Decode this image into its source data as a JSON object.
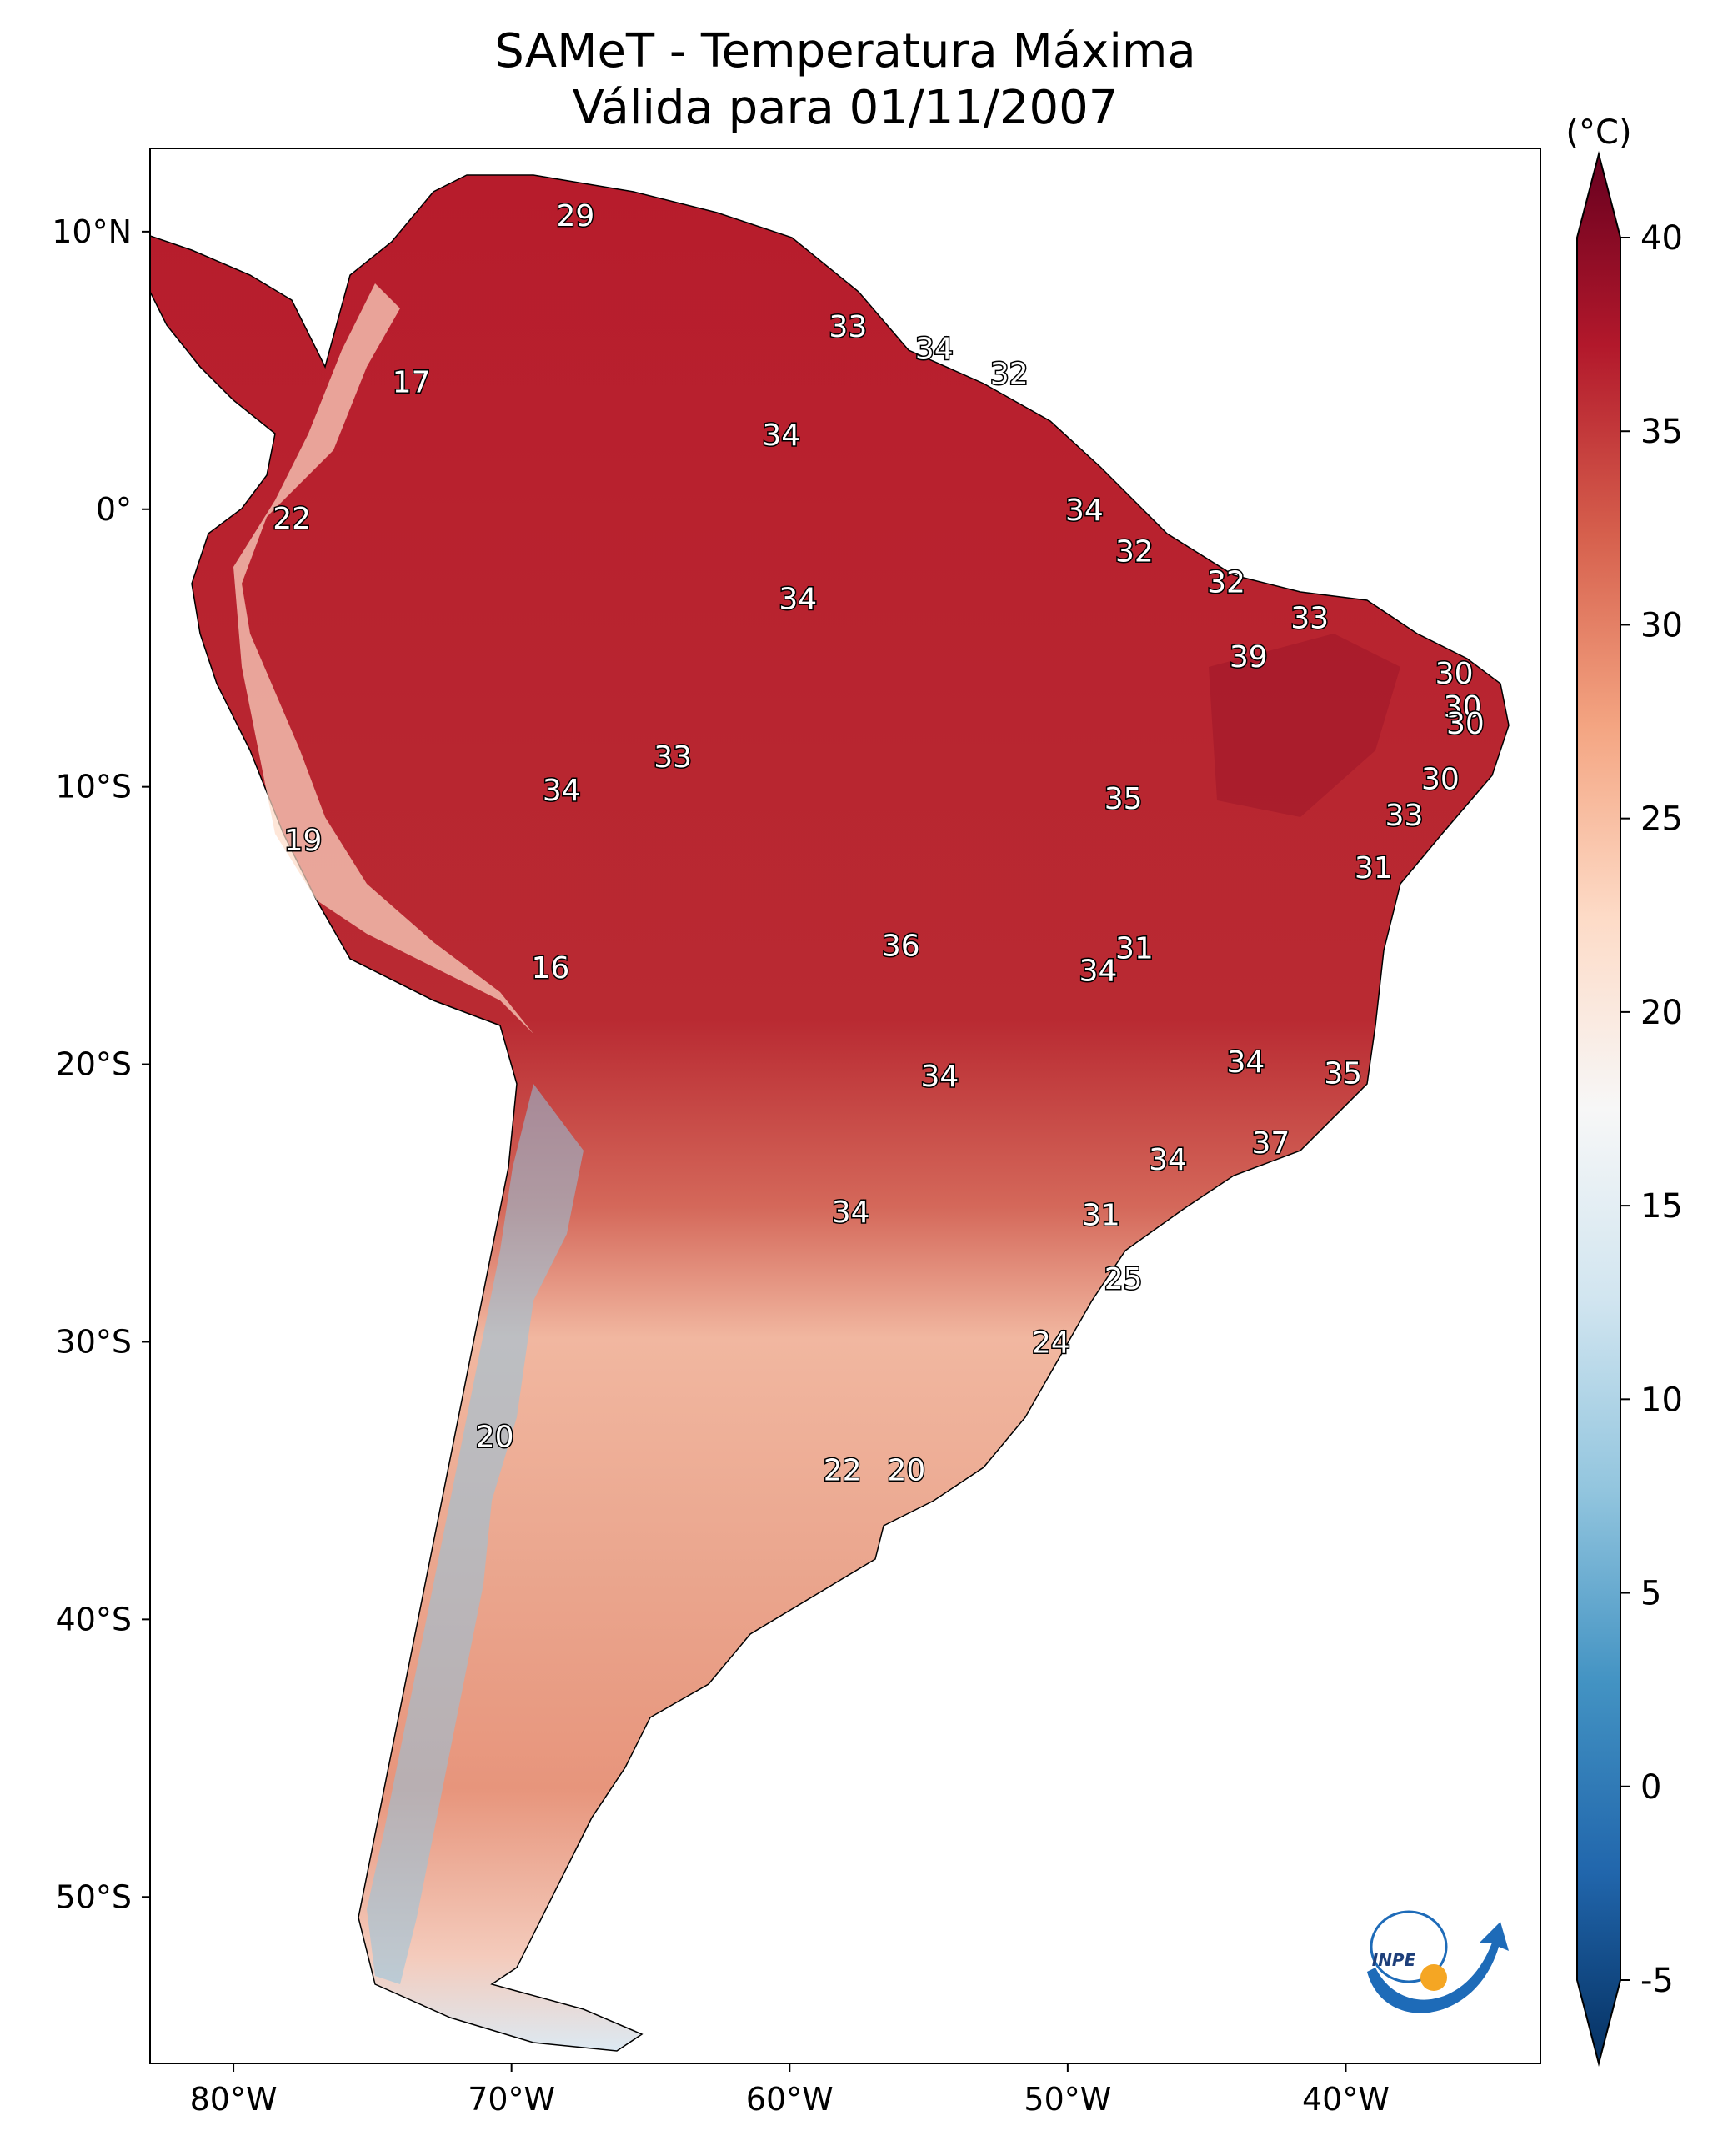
{
  "title": {
    "line1": "SAMeT - Temperatura Máxima",
    "line2": "Válida para 01/11/2007"
  },
  "axes": {
    "lon_ticks": [
      {
        "value": -80,
        "label": "80°W"
      },
      {
        "value": -70,
        "label": "70°W"
      },
      {
        "value": -60,
        "label": "60°W"
      },
      {
        "value": -50,
        "label": "50°W"
      },
      {
        "value": -40,
        "label": "40°W"
      }
    ],
    "lat_ticks": [
      {
        "value": 10,
        "label": "10°N"
      },
      {
        "value": 0,
        "label": "0°"
      },
      {
        "value": -10,
        "label": "10°S"
      },
      {
        "value": -20,
        "label": "20°S"
      },
      {
        "value": -30,
        "label": "30°S"
      },
      {
        "value": -40,
        "label": "40°S"
      },
      {
        "value": -50,
        "label": "50°S"
      }
    ],
    "lon_range": [
      -83,
      -33
    ],
    "lat_range": [
      -56,
      13
    ]
  },
  "colorbar": {
    "unit": "(°C)",
    "range": [
      -5,
      40
    ],
    "ticks": [
      {
        "value": 40,
        "label": "40"
      },
      {
        "value": 35,
        "label": "35"
      },
      {
        "value": 30,
        "label": "30"
      },
      {
        "value": 25,
        "label": "25"
      },
      {
        "value": 20,
        "label": "20"
      },
      {
        "value": 15,
        "label": "15"
      },
      {
        "value": 10,
        "label": "10"
      },
      {
        "value": 5,
        "label": "5"
      },
      {
        "value": 0,
        "label": "0"
      },
      {
        "value": -5,
        "label": "-5"
      }
    ],
    "colors": [
      "#053061",
      "#2166ac",
      "#4393c3",
      "#92c5de",
      "#d1e5f0",
      "#f7f7f7",
      "#fddbc7",
      "#f4a582",
      "#d6604d",
      "#b2182b",
      "#67001f"
    ]
  },
  "logo_text": "INPE",
  "labels": [
    {
      "lon": -67.7,
      "lat": 10.6,
      "text": "29"
    },
    {
      "lon": -57.9,
      "lat": 6.6,
      "text": "33"
    },
    {
      "lon": -54.8,
      "lat": 5.8,
      "text": "34"
    },
    {
      "lon": -52.1,
      "lat": 4.9,
      "text": "32"
    },
    {
      "lon": -73.6,
      "lat": 4.6,
      "text": "17"
    },
    {
      "lon": -60.3,
      "lat": 2.7,
      "text": "34"
    },
    {
      "lon": -49.4,
      "lat": 0.0,
      "text": "34"
    },
    {
      "lon": -77.9,
      "lat": -0.3,
      "text": "22"
    },
    {
      "lon": -47.6,
      "lat": -1.5,
      "text": "32"
    },
    {
      "lon": -44.3,
      "lat": -2.6,
      "text": "32"
    },
    {
      "lon": -59.7,
      "lat": -3.2,
      "text": "34"
    },
    {
      "lon": -41.3,
      "lat": -3.9,
      "text": "33"
    },
    {
      "lon": -43.5,
      "lat": -5.3,
      "text": "39"
    },
    {
      "lon": -36.1,
      "lat": -5.9,
      "text": "30"
    },
    {
      "lon": -35.8,
      "lat": -7.1,
      "text": "30"
    },
    {
      "lon": -35.7,
      "lat": -7.7,
      "text": "30"
    },
    {
      "lon": -64.2,
      "lat": -8.9,
      "text": "33"
    },
    {
      "lon": -68.2,
      "lat": -10.1,
      "text": "34"
    },
    {
      "lon": -48.0,
      "lat": -10.4,
      "text": "35"
    },
    {
      "lon": -36.6,
      "lat": -9.7,
      "text": "30"
    },
    {
      "lon": -37.9,
      "lat": -11.0,
      "text": "33"
    },
    {
      "lon": -77.5,
      "lat": -11.9,
      "text": "19"
    },
    {
      "lon": -39.0,
      "lat": -12.9,
      "text": "31"
    },
    {
      "lon": -47.6,
      "lat": -15.8,
      "text": "31"
    },
    {
      "lon": -56.0,
      "lat": -15.7,
      "text": "36"
    },
    {
      "lon": -48.9,
      "lat": -16.6,
      "text": "34"
    },
    {
      "lon": -68.6,
      "lat": -16.5,
      "text": "16"
    },
    {
      "lon": -43.6,
      "lat": -19.9,
      "text": "34"
    },
    {
      "lon": -40.1,
      "lat": -20.3,
      "text": "35"
    },
    {
      "lon": -54.6,
      "lat": -20.4,
      "text": "34"
    },
    {
      "lon": -42.7,
      "lat": -22.8,
      "text": "37"
    },
    {
      "lon": -46.4,
      "lat": -23.4,
      "text": "34"
    },
    {
      "lon": -57.8,
      "lat": -25.3,
      "text": "34"
    },
    {
      "lon": -48.8,
      "lat": -25.4,
      "text": "31"
    },
    {
      "lon": -48.0,
      "lat": -27.7,
      "text": "25"
    },
    {
      "lon": -50.6,
      "lat": -30.0,
      "text": "24"
    },
    {
      "lon": -70.6,
      "lat": -33.4,
      "text": "20"
    },
    {
      "lon": -58.1,
      "lat": -34.6,
      "text": "22"
    },
    {
      "lon": -55.8,
      "lat": -34.6,
      "text": "20"
    }
  ]
}
